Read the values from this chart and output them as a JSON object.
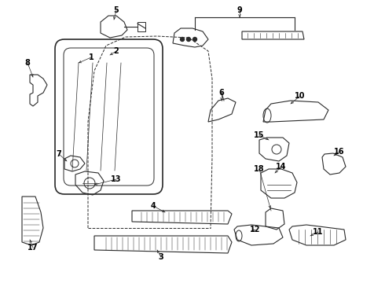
{
  "bg_color": "#ffffff",
  "line_color": "#2a2a2a",
  "label_color": "#000000",
  "fig_width": 4.9,
  "fig_height": 3.6,
  "dpi": 100,
  "label_fs": 7.0
}
